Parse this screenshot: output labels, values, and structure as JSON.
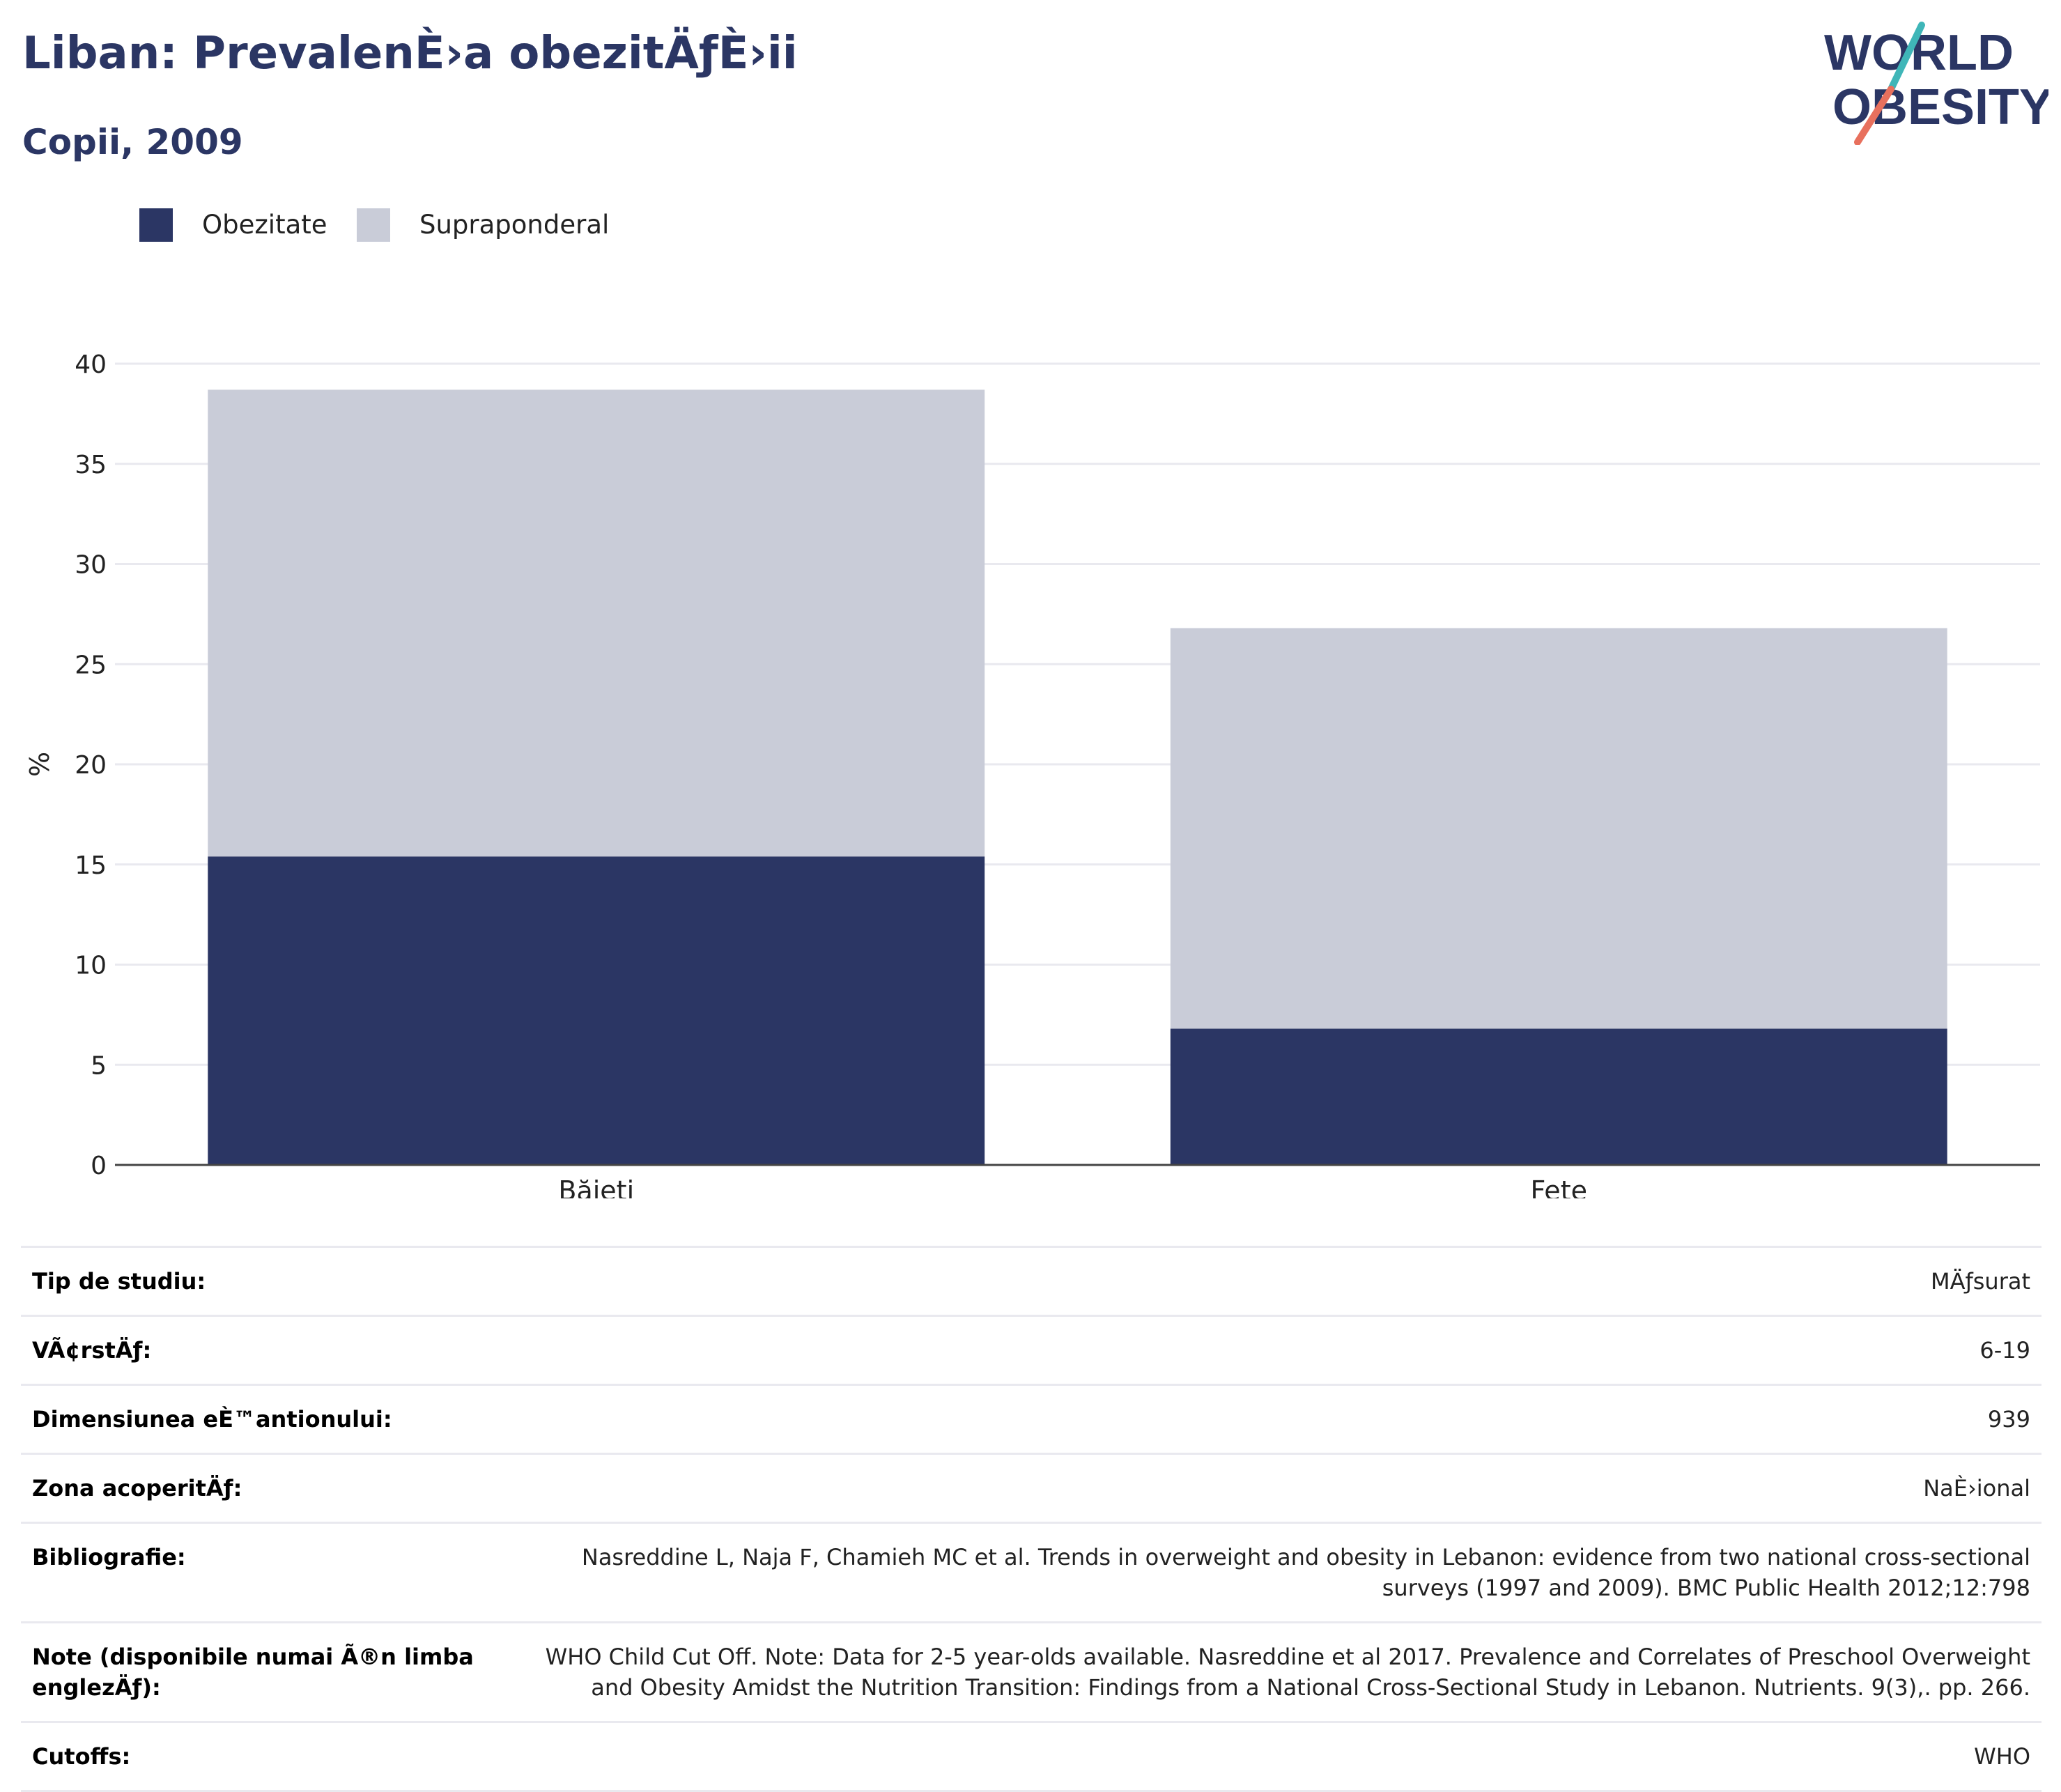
{
  "title": "Liban: PrevalenÈ›a obezitÄƒÈ›ii",
  "subtitle": "Copii, 2009",
  "logo": {
    "line1": "WORLD",
    "line2": "OBESITY",
    "colors": {
      "text": "#2b3664",
      "slash_top": "#3fb6b8",
      "slash_bottom": "#e8705d"
    }
  },
  "legend": [
    {
      "label": "Obezitate",
      "color": "#2b3664"
    },
    {
      "label": "Supraponderal",
      "color": "#c9ccd8"
    }
  ],
  "chart_data": {
    "type": "bar",
    "stacked": true,
    "categories": [
      "Băieți",
      "Fete"
    ],
    "series": [
      {
        "name": "Obezitate",
        "values": [
          15.4,
          6.8
        ],
        "color": "#2b3664"
      },
      {
        "name": "Supraponderal",
        "values": [
          23.3,
          20.0
        ],
        "color": "#c9ccd8"
      }
    ],
    "ylabel": "%",
    "ylim": [
      0,
      40
    ],
    "yticks": [
      0,
      5,
      10,
      15,
      20,
      25,
      30,
      35,
      40
    ],
    "grid": true
  },
  "info_table": [
    {
      "label": "Tip de studiu:",
      "value": "MÄƒsurat"
    },
    {
      "label": "VÃ¢rstÄƒ:",
      "value": "6-19"
    },
    {
      "label": "Dimensiunea eÈ™antionului:",
      "value": "939"
    },
    {
      "label": "Zona acoperitÄƒ:",
      "value": "NaÈ›ional"
    },
    {
      "label": "Bibliografie:",
      "value": "Nasreddine L, Naja F, Chamieh MC et al. Trends in overweight and obesity in Lebanon: evidence from two national cross-sectional surveys (1997 and 2009). BMC Public Health 2012;12:798"
    },
    {
      "label": "Note (disponibile numai Ã®n limba englezÄƒ):",
      "value": "WHO Child Cut Off. Note: Data for 2-5 year-olds available. Nasreddine et al 2017. Prevalence and Correlates of Preschool Overweight and Obesity Amidst the Nutrition Transition: Findings from a National Cross-Sectional Study in Lebanon. Nutrients. 9(3),. pp. 266."
    },
    {
      "label": "Cutoffs:",
      "value": "WHO"
    }
  ]
}
